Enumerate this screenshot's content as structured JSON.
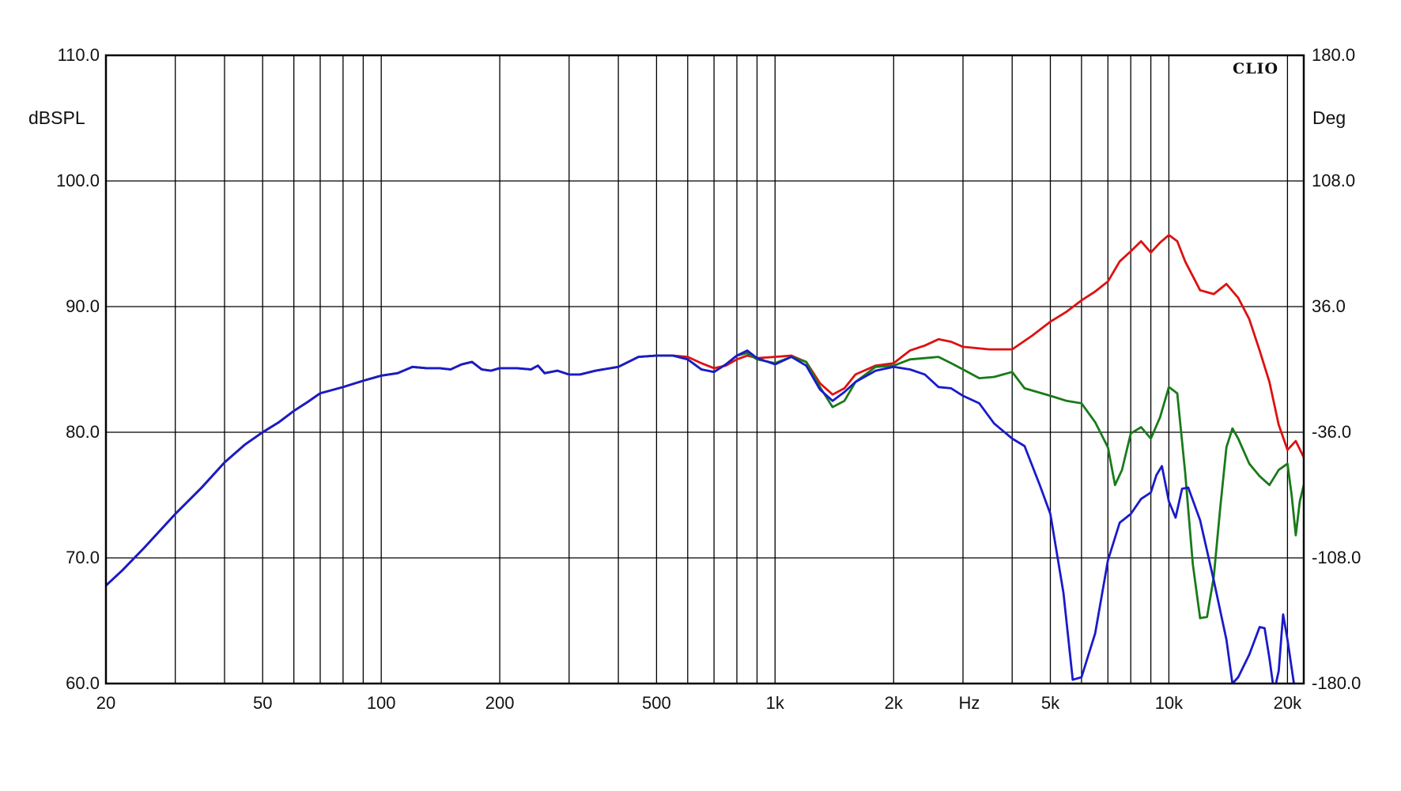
{
  "chart_data": {
    "type": "line",
    "brand": "CLIO",
    "x_unit_label": "Hz",
    "left_axis": {
      "label": "dBSPL",
      "range": [
        60,
        110
      ],
      "ticks": [
        {
          "value": 110,
          "label": "110.0"
        },
        {
          "value": 100,
          "label": "100.0"
        },
        {
          "value": 90,
          "label": "90.0"
        },
        {
          "value": 80,
          "label": "80.0"
        },
        {
          "value": 70,
          "label": "70.0"
        },
        {
          "value": 60,
          "label": "60.0"
        }
      ]
    },
    "right_axis": {
      "label": "Deg",
      "range": [
        -180,
        180
      ],
      "ticks": [
        {
          "value": 180,
          "label": "180.0"
        },
        {
          "value": 108,
          "label": "108.0"
        },
        {
          "value": 36,
          "label": "36.0"
        },
        {
          "value": -36,
          "label": "-36.0"
        },
        {
          "value": -108,
          "label": "-108.0"
        },
        {
          "value": -180,
          "label": "-180.0"
        }
      ]
    },
    "x_axis": {
      "scale": "log",
      "range": [
        20,
        22000
      ],
      "ticks": [
        {
          "value": 20,
          "label": "20"
        },
        {
          "value": 50,
          "label": "50"
        },
        {
          "value": 100,
          "label": "100"
        },
        {
          "value": 200,
          "label": "200"
        },
        {
          "value": 500,
          "label": "500"
        },
        {
          "value": 1000,
          "label": "1k"
        },
        {
          "value": 2000,
          "label": "2k"
        },
        {
          "value": 5000,
          "label": "5k"
        },
        {
          "value": 10000,
          "label": "10k"
        },
        {
          "value": 20000,
          "label": "20k"
        }
      ],
      "gridlines": [
        20,
        30,
        40,
        50,
        60,
        70,
        80,
        90,
        100,
        200,
        300,
        400,
        500,
        600,
        700,
        800,
        900,
        1000,
        2000,
        3000,
        4000,
        5000,
        6000,
        7000,
        8000,
        9000,
        10000,
        20000
      ]
    },
    "grid": true,
    "series": [
      {
        "color": "#dd1111",
        "points": [
          [
            20,
            67.8
          ],
          [
            22,
            69
          ],
          [
            25,
            70.8
          ],
          [
            30,
            73.5
          ],
          [
            35,
            75.6
          ],
          [
            40,
            77.6
          ],
          [
            45,
            79
          ],
          [
            50,
            80
          ],
          [
            55,
            80.8
          ],
          [
            60,
            81.7
          ],
          [
            65,
            82.4
          ],
          [
            70,
            83.1
          ],
          [
            80,
            83.6
          ],
          [
            90,
            84.1
          ],
          [
            100,
            84.5
          ],
          [
            110,
            84.7
          ],
          [
            120,
            85.2
          ],
          [
            130,
            85.1
          ],
          [
            140,
            85.1
          ],
          [
            150,
            85.0
          ],
          [
            160,
            85.4
          ],
          [
            170,
            85.6
          ],
          [
            180,
            85.0
          ],
          [
            190,
            84.9
          ],
          [
            200,
            85.1
          ],
          [
            220,
            85.1
          ],
          [
            240,
            85.0
          ],
          [
            250,
            85.3
          ],
          [
            260,
            84.7
          ],
          [
            280,
            84.9
          ],
          [
            300,
            84.6
          ],
          [
            320,
            84.6
          ],
          [
            350,
            84.9
          ],
          [
            400,
            85.2
          ],
          [
            450,
            86.0
          ],
          [
            500,
            86.1
          ],
          [
            550,
            86.1
          ],
          [
            600,
            86.0
          ],
          [
            650,
            85.5
          ],
          [
            700,
            85.1
          ],
          [
            750,
            85.3
          ],
          [
            800,
            85.8
          ],
          [
            850,
            86.1
          ],
          [
            900,
            85.9
          ],
          [
            1000,
            86.0
          ],
          [
            1100,
            86.1
          ],
          [
            1200,
            85.6
          ],
          [
            1300,
            83.9
          ],
          [
            1400,
            83.0
          ],
          [
            1500,
            83.5
          ],
          [
            1600,
            84.6
          ],
          [
            1800,
            85.3
          ],
          [
            2000,
            85.5
          ],
          [
            2200,
            86.5
          ],
          [
            2400,
            86.9
          ],
          [
            2600,
            87.4
          ],
          [
            2800,
            87.2
          ],
          [
            3000,
            86.8
          ],
          [
            3500,
            86.6
          ],
          [
            4000,
            86.6
          ],
          [
            4500,
            87.7
          ],
          [
            5000,
            88.8
          ],
          [
            5500,
            89.6
          ],
          [
            6000,
            90.5
          ],
          [
            6500,
            91.2
          ],
          [
            7000,
            92.0
          ],
          [
            7500,
            93.6
          ],
          [
            8000,
            94.4
          ],
          [
            8500,
            95.2
          ],
          [
            9000,
            94.3
          ],
          [
            9500,
            95.1
          ],
          [
            10000,
            95.7
          ],
          [
            10500,
            95.2
          ],
          [
            11000,
            93.6
          ],
          [
            12000,
            91.3
          ],
          [
            13000,
            91.0
          ],
          [
            14000,
            91.8
          ],
          [
            15000,
            90.7
          ],
          [
            16000,
            89.0
          ],
          [
            17000,
            86.5
          ],
          [
            18000,
            84.0
          ],
          [
            19000,
            80.6
          ],
          [
            20000,
            78.6
          ],
          [
            21000,
            79.3
          ],
          [
            22000,
            78.0
          ]
        ]
      },
      {
        "color": "#1a7a1a",
        "points": [
          [
            20,
            67.8
          ],
          [
            22,
            69
          ],
          [
            25,
            70.8
          ],
          [
            30,
            73.5
          ],
          [
            35,
            75.6
          ],
          [
            40,
            77.6
          ],
          [
            45,
            79
          ],
          [
            50,
            80
          ],
          [
            55,
            80.8
          ],
          [
            60,
            81.7
          ],
          [
            65,
            82.4
          ],
          [
            70,
            83.1
          ],
          [
            80,
            83.6
          ],
          [
            90,
            84.1
          ],
          [
            100,
            84.5
          ],
          [
            110,
            84.7
          ],
          [
            120,
            85.2
          ],
          [
            130,
            85.1
          ],
          [
            140,
            85.1
          ],
          [
            150,
            85.0
          ],
          [
            160,
            85.4
          ],
          [
            170,
            85.6
          ],
          [
            180,
            85.0
          ],
          [
            190,
            84.9
          ],
          [
            200,
            85.1
          ],
          [
            220,
            85.1
          ],
          [
            240,
            85.0
          ],
          [
            250,
            85.3
          ],
          [
            260,
            84.7
          ],
          [
            280,
            84.9
          ],
          [
            300,
            84.6
          ],
          [
            320,
            84.6
          ],
          [
            350,
            84.9
          ],
          [
            400,
            85.2
          ],
          [
            450,
            86.0
          ],
          [
            500,
            86.1
          ],
          [
            550,
            86.1
          ],
          [
            600,
            85.8
          ],
          [
            650,
            85.0
          ],
          [
            700,
            84.8
          ],
          [
            750,
            85.4
          ],
          [
            800,
            86.1
          ],
          [
            850,
            86.3
          ],
          [
            900,
            85.8
          ],
          [
            1000,
            85.5
          ],
          [
            1100,
            86.0
          ],
          [
            1200,
            85.6
          ],
          [
            1300,
            83.6
          ],
          [
            1400,
            82.0
          ],
          [
            1500,
            82.5
          ],
          [
            1600,
            84.0
          ],
          [
            1800,
            85.2
          ],
          [
            2000,
            85.3
          ],
          [
            2200,
            85.8
          ],
          [
            2400,
            85.9
          ],
          [
            2600,
            86.0
          ],
          [
            2800,
            85.5
          ],
          [
            3000,
            85.0
          ],
          [
            3300,
            84.3
          ],
          [
            3600,
            84.4
          ],
          [
            4000,
            84.8
          ],
          [
            4300,
            83.5
          ],
          [
            5000,
            82.9
          ],
          [
            5500,
            82.5
          ],
          [
            6000,
            82.3
          ],
          [
            6500,
            80.8
          ],
          [
            7000,
            78.8
          ],
          [
            7300,
            75.8
          ],
          [
            7600,
            77.0
          ],
          [
            8000,
            79.9
          ],
          [
            8500,
            80.4
          ],
          [
            9000,
            79.5
          ],
          [
            9500,
            81.2
          ],
          [
            10000,
            83.6
          ],
          [
            10500,
            83.1
          ],
          [
            11000,
            76.8
          ],
          [
            11500,
            69.5
          ],
          [
            12000,
            65.2
          ],
          [
            12500,
            65.3
          ],
          [
            13000,
            68.5
          ],
          [
            13500,
            74.0
          ],
          [
            14000,
            78.8
          ],
          [
            14500,
            80.3
          ],
          [
            15000,
            79.5
          ],
          [
            16000,
            77.5
          ],
          [
            17000,
            76.5
          ],
          [
            18000,
            75.8
          ],
          [
            19000,
            77.0
          ],
          [
            20000,
            77.5
          ],
          [
            20500,
            75.0
          ],
          [
            21000,
            71.8
          ],
          [
            21500,
            74.5
          ],
          [
            22000,
            75.8
          ]
        ]
      },
      {
        "color": "#1a1acc",
        "points": [
          [
            20,
            67.8
          ],
          [
            22,
            69
          ],
          [
            25,
            70.8
          ],
          [
            30,
            73.5
          ],
          [
            35,
            75.6
          ],
          [
            40,
            77.6
          ],
          [
            45,
            79
          ],
          [
            50,
            80
          ],
          [
            55,
            80.8
          ],
          [
            60,
            81.7
          ],
          [
            65,
            82.4
          ],
          [
            70,
            83.1
          ],
          [
            80,
            83.6
          ],
          [
            90,
            84.1
          ],
          [
            100,
            84.5
          ],
          [
            110,
            84.7
          ],
          [
            120,
            85.2
          ],
          [
            130,
            85.1
          ],
          [
            140,
            85.1
          ],
          [
            150,
            85.0
          ],
          [
            160,
            85.4
          ],
          [
            170,
            85.6
          ],
          [
            180,
            85.0
          ],
          [
            190,
            84.9
          ],
          [
            200,
            85.1
          ],
          [
            220,
            85.1
          ],
          [
            240,
            85.0
          ],
          [
            250,
            85.3
          ],
          [
            260,
            84.7
          ],
          [
            280,
            84.9
          ],
          [
            300,
            84.6
          ],
          [
            320,
            84.6
          ],
          [
            350,
            84.9
          ],
          [
            400,
            85.2
          ],
          [
            450,
            86.0
          ],
          [
            500,
            86.1
          ],
          [
            550,
            86.1
          ],
          [
            600,
            85.8
          ],
          [
            650,
            85.0
          ],
          [
            700,
            84.8
          ],
          [
            750,
            85.4
          ],
          [
            800,
            86.1
          ],
          [
            850,
            86.5
          ],
          [
            900,
            85.9
          ],
          [
            1000,
            85.4
          ],
          [
            1100,
            86.0
          ],
          [
            1200,
            85.3
          ],
          [
            1300,
            83.4
          ],
          [
            1400,
            82.5
          ],
          [
            1500,
            83.2
          ],
          [
            1600,
            84.0
          ],
          [
            1800,
            84.9
          ],
          [
            2000,
            85.2
          ],
          [
            2200,
            85.0
          ],
          [
            2400,
            84.6
          ],
          [
            2600,
            83.6
          ],
          [
            2800,
            83.5
          ],
          [
            3000,
            82.9
          ],
          [
            3300,
            82.3
          ],
          [
            3600,
            80.7
          ],
          [
            4000,
            79.5
          ],
          [
            4300,
            78.9
          ],
          [
            4700,
            75.8
          ],
          [
            5000,
            73.5
          ],
          [
            5400,
            67.2
          ],
          [
            5700,
            60.3
          ],
          [
            6000,
            60.5
          ],
          [
            6500,
            64.0
          ],
          [
            7000,
            69.8
          ],
          [
            7500,
            72.8
          ],
          [
            8000,
            73.5
          ],
          [
            8500,
            74.7
          ],
          [
            9000,
            75.2
          ],
          [
            9300,
            76.6
          ],
          [
            9600,
            77.3
          ],
          [
            10000,
            74.5
          ],
          [
            10400,
            73.2
          ],
          [
            10800,
            75.5
          ],
          [
            11200,
            75.6
          ],
          [
            12000,
            73.0
          ],
          [
            13000,
            68.2
          ],
          [
            14000,
            63.5
          ],
          [
            14500,
            60.0
          ],
          [
            15000,
            60.5
          ],
          [
            16000,
            62.3
          ],
          [
            17000,
            64.5
          ],
          [
            17500,
            64.4
          ],
          [
            18000,
            62.0
          ],
          [
            18500,
            59.3
          ],
          [
            19000,
            61.0
          ],
          [
            19500,
            65.5
          ],
          [
            20000,
            63.5
          ],
          [
            21000,
            59.0
          ]
        ]
      }
    ]
  }
}
